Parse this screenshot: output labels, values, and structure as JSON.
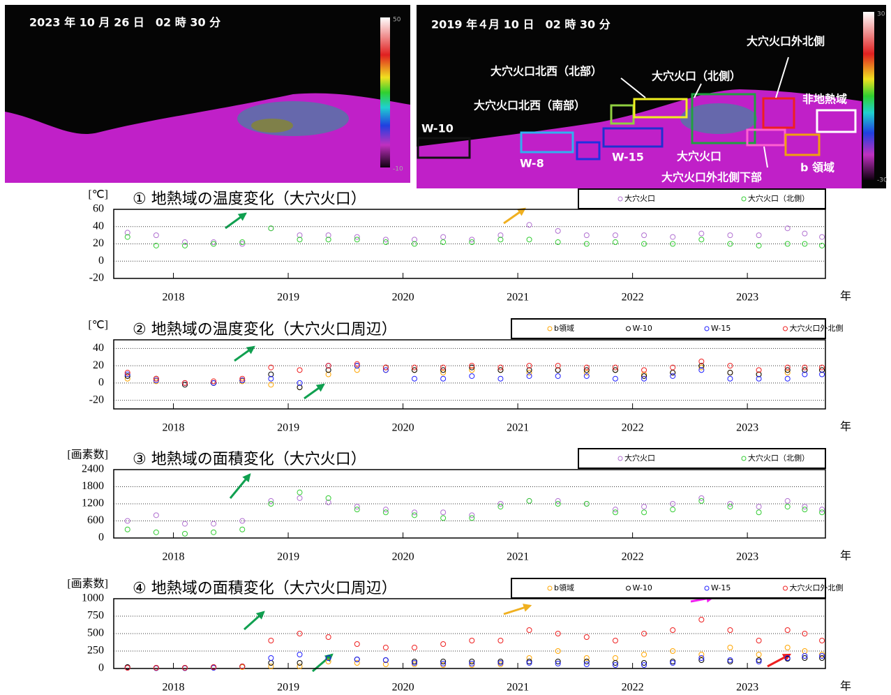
{
  "images": {
    "left": {
      "timestamp": "2023 年 10 月 26 日　02 時 30 分",
      "colorbar_max": "50",
      "colorbar_min": "-10"
    },
    "right": {
      "timestamp": "2019 年４月 10 日　02 時 30 分",
      "colorbar_max": "30",
      "colorbar_min": "-30",
      "regions": [
        "W-10",
        "大穴火口北西（北部）",
        "大穴火口北西（南部）",
        "大穴火口（北側）",
        "大穴火口外北側",
        "非地熱域",
        "W-8",
        "W-15",
        "大穴火口",
        "大穴火口外北側下部",
        "b 領域"
      ]
    }
  },
  "chart_data": [
    {
      "type": "scatter",
      "title": "①  地熱域の温度変化（大穴火口）",
      "ylabel": "[℃]",
      "xlabel": "年",
      "x": [
        2017.6,
        2017.85,
        2018.1,
        2018.35,
        2018.6,
        2018.85,
        2019.1,
        2019.35,
        2019.6,
        2019.85,
        2020.1,
        2020.35,
        2020.6,
        2020.85,
        2021.1,
        2021.35,
        2021.6,
        2021.85,
        2022.1,
        2022.35,
        2022.6,
        2022.85,
        2023.1,
        2023.35,
        2023.5,
        2023.65
      ],
      "xlim": [
        2017.48,
        2023.68
      ],
      "xticks": [
        2018,
        2019,
        2020,
        2021,
        2022,
        2023
      ],
      "ylim": [
        -20,
        60
      ],
      "yticks": [
        -20,
        0,
        20,
        40,
        60
      ],
      "grid": true,
      "series": [
        {
          "name": "大穴火口",
          "color": "#b070d0",
          "values": [
            33,
            30,
            22,
            22,
            20,
            38,
            30,
            30,
            28,
            25,
            25,
            28,
            25,
            30,
            42,
            35,
            30,
            30,
            30,
            28,
            32,
            30,
            30,
            38,
            32,
            28
          ]
        },
        {
          "name": "大穴火口（北側）",
          "color": "#33cc33",
          "values": [
            28,
            18,
            18,
            20,
            22,
            38,
            25,
            25,
            25,
            22,
            20,
            22,
            22,
            25,
            25,
            22,
            20,
            22,
            20,
            20,
            25,
            20,
            18,
            20,
            20,
            18
          ]
        }
      ]
    },
    {
      "type": "scatter",
      "title": "②  地熱域の温度変化（大穴火口周辺）",
      "ylabel": "[℃]",
      "xlabel": "年",
      "x": [
        2017.6,
        2017.85,
        2018.1,
        2018.35,
        2018.6,
        2018.85,
        2019.1,
        2019.35,
        2019.6,
        2019.85,
        2020.1,
        2020.35,
        2020.6,
        2020.85,
        2021.1,
        2021.35,
        2021.6,
        2021.85,
        2022.1,
        2022.35,
        2022.6,
        2022.85,
        2023.1,
        2023.35,
        2023.5,
        2023.65
      ],
      "xlim": [
        2017.48,
        2023.68
      ],
      "xticks": [
        2018,
        2019,
        2020,
        2021,
        2022,
        2023
      ],
      "ylim": [
        -30,
        50
      ],
      "yticks": [
        -20,
        0,
        20,
        40
      ],
      "grid": true,
      "series": [
        {
          "name": "b領域",
          "color": "#ffa500",
          "values": [
            5,
            2,
            0,
            0,
            2,
            -2,
            -5,
            10,
            15,
            15,
            15,
            12,
            15,
            15,
            12,
            15,
            12,
            15,
            10,
            12,
            18,
            12,
            10,
            12,
            15,
            15
          ]
        },
        {
          "name": "W-10",
          "color": "#000000",
          "values": [
            8,
            5,
            -2,
            0,
            3,
            10,
            -5,
            15,
            20,
            18,
            15,
            15,
            18,
            15,
            15,
            15,
            15,
            15,
            8,
            12,
            20,
            12,
            10,
            15,
            15,
            15
          ]
        },
        {
          "name": "W-15",
          "color": "#2020ff",
          "values": [
            10,
            3,
            0,
            0,
            3,
            5,
            0,
            20,
            20,
            15,
            5,
            5,
            8,
            5,
            8,
            8,
            8,
            5,
            5,
            8,
            15,
            5,
            5,
            5,
            10,
            10
          ]
        },
        {
          "name": "大穴火口外北側",
          "color": "#ee2020",
          "values": [
            12,
            5,
            0,
            2,
            5,
            18,
            15,
            20,
            22,
            18,
            18,
            18,
            20,
            18,
            20,
            20,
            18,
            18,
            15,
            18,
            25,
            20,
            15,
            18,
            18,
            18
          ]
        }
      ]
    },
    {
      "type": "scatter",
      "title": "③  地熱域の面積変化（大穴火口）",
      "ylabel": "[画素数]",
      "xlabel": "年",
      "x": [
        2017.6,
        2017.85,
        2018.1,
        2018.35,
        2018.6,
        2018.85,
        2019.1,
        2019.35,
        2019.6,
        2019.85,
        2020.1,
        2020.35,
        2020.6,
        2020.85,
        2021.1,
        2021.35,
        2021.6,
        2021.85,
        2022.1,
        2022.35,
        2022.6,
        2022.85,
        2023.1,
        2023.35,
        2023.5,
        2023.65
      ],
      "xlim": [
        2017.48,
        2023.68
      ],
      "xticks": [
        2018,
        2019,
        2020,
        2021,
        2022,
        2023
      ],
      "ylim": [
        0,
        2400
      ],
      "yticks": [
        0,
        600,
        1200,
        1800,
        2400
      ],
      "grid": true,
      "series": [
        {
          "name": "大穴火口",
          "color": "#b070d0",
          "values": [
            600,
            800,
            500,
            500,
            600,
            1300,
            1400,
            1250,
            1100,
            1000,
            900,
            900,
            800,
            1200,
            1300,
            1300,
            1200,
            1000,
            1100,
            1200,
            1400,
            1200,
            1100,
            1300,
            1100,
            1000
          ]
        },
        {
          "name": "大穴火口（北側）",
          "color": "#33cc33",
          "values": [
            300,
            200,
            150,
            200,
            300,
            1200,
            1600,
            1400,
            1000,
            900,
            800,
            700,
            700,
            1100,
            1300,
            1200,
            1200,
            900,
            900,
            1000,
            1300,
            1100,
            900,
            1100,
            1000,
            900
          ]
        }
      ]
    },
    {
      "type": "scatter",
      "title": "④  地熱域の面積変化（大穴火口周辺）",
      "ylabel": "[画素数]",
      "xlabel": "年",
      "x": [
        2017.6,
        2017.85,
        2018.1,
        2018.35,
        2018.6,
        2018.85,
        2019.1,
        2019.35,
        2019.6,
        2019.85,
        2020.1,
        2020.35,
        2020.6,
        2020.85,
        2021.1,
        2021.35,
        2021.6,
        2021.85,
        2022.1,
        2022.35,
        2022.6,
        2022.85,
        2023.1,
        2023.35,
        2023.5,
        2023.65
      ],
      "xlim": [
        2017.48,
        2023.68
      ],
      "xticks": [
        2018,
        2019,
        2020,
        2021,
        2022,
        2023
      ],
      "ylim": [
        0,
        1000
      ],
      "yticks": [
        0,
        250,
        500,
        750,
        1000
      ],
      "grid": true,
      "series": [
        {
          "name": "b領域",
          "color": "#ffa500",
          "values": [
            10,
            5,
            5,
            10,
            20,
            30,
            30,
            100,
            80,
            60,
            60,
            50,
            50,
            60,
            150,
            250,
            150,
            150,
            200,
            250,
            200,
            300,
            200,
            300,
            250,
            200
          ]
        },
        {
          "name": "W-10",
          "color": "#000000",
          "values": [
            20,
            10,
            10,
            20,
            30,
            80,
            80,
            150,
            130,
            120,
            100,
            100,
            100,
            100,
            100,
            100,
            100,
            80,
            80,
            100,
            120,
            100,
            120,
            140,
            150,
            150
          ]
        },
        {
          "name": "W-15",
          "color": "#2020ff",
          "values": [
            10,
            5,
            5,
            10,
            30,
            150,
            200,
            150,
            130,
            120,
            80,
            70,
            70,
            80,
            80,
            70,
            60,
            50,
            50,
            80,
            150,
            120,
            100,
            150,
            180,
            180
          ]
        },
        {
          "name": "大穴火口外北側",
          "color": "#ee2020",
          "values": [
            10,
            10,
            10,
            20,
            30,
            400,
            500,
            450,
            350,
            300,
            300,
            350,
            400,
            400,
            550,
            500,
            450,
            400,
            500,
            550,
            700,
            550,
            400,
            550,
            500,
            400
          ]
        }
      ]
    }
  ]
}
